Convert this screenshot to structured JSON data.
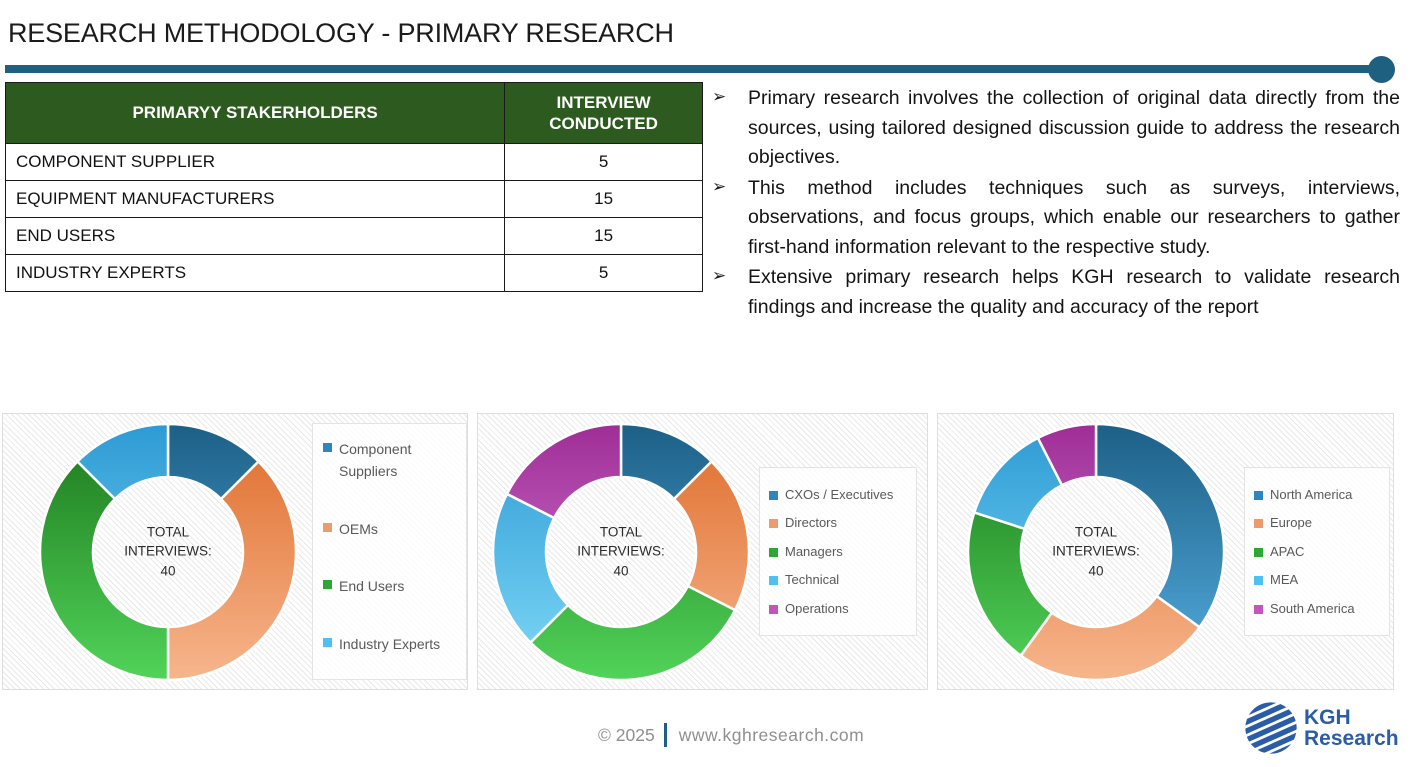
{
  "page": {
    "title": "RESEARCH METHODOLOGY - PRIMARY RESEARCH"
  },
  "theme": {
    "divider_color": "#1E6080",
    "table_header_bg": "#2D5A1E",
    "table_border": "#1a1a1a",
    "legend_text": "#595959",
    "logo_blue": "#2B5CA8"
  },
  "table": {
    "headers": [
      "PRIMARYY STAKERHOLDERS",
      "INTERVIEW CONDUCTED"
    ],
    "rows": [
      {
        "stakeholder": "COMPONENT SUPPLIER",
        "interviews": "5"
      },
      {
        "stakeholder": "EQUIPMENT MANUFACTURERS",
        "interviews": "15"
      },
      {
        "stakeholder": "END USERS",
        "interviews": "15"
      },
      {
        "stakeholder": "INDUSTRY EXPERTS",
        "interviews": "5"
      }
    ]
  },
  "bullets": {
    "marker": "➢",
    "items": [
      "Primary research involves the collection of original data directly from the sources, using tailored designed discussion guide to address the research objectives.",
      "This method includes techniques such as surveys, interviews, observations, and focus groups, which enable our researchers to gather first-hand information relevant to the respective study.",
      "Extensive primary research helps KGH research to validate research findings and increase the quality and accuracy of the report"
    ]
  },
  "chart_data": [
    {
      "type": "pie",
      "subtype": "donut",
      "title": "Interviews by stakeholder",
      "center_label": "TOTAL INTERVIEWS:",
      "center_value": "40",
      "total": 40,
      "legend_position": "right",
      "series": [
        {
          "label": "Component Suppliers",
          "value": 5,
          "marker": "#2E86C1",
          "grad_top": "#1C5F86",
          "grad_bottom": "#55AEE0"
        },
        {
          "label": "OEMs",
          "value": 15,
          "marker": "#EC9B6F",
          "grad_top": "#DE6C2B",
          "grad_bottom": "#F7B68D"
        },
        {
          "label": "End Users",
          "value": 15,
          "marker": "#2FA833",
          "grad_top": "#1B761B",
          "grad_bottom": "#52D45A"
        },
        {
          "label": "Industry Experts",
          "value": 5,
          "marker": "#4FC1F0",
          "grad_top": "#2D9AD4",
          "grad_bottom": "#7FD9F7"
        }
      ]
    },
    {
      "type": "pie",
      "subtype": "donut",
      "title": "Interviews by designation",
      "center_label": "TOTAL INTERVIEWS:",
      "center_value": "40",
      "total": 40,
      "legend_position": "right",
      "series": [
        {
          "label": "CXOs / Executives",
          "value": 5,
          "marker": "#2E86C1",
          "grad_top": "#1C5F86",
          "grad_bottom": "#55AEE0"
        },
        {
          "label": "Directors",
          "value": 8,
          "marker": "#EC9B6F",
          "grad_top": "#DE6C2B",
          "grad_bottom": "#F7B68D"
        },
        {
          "label": "Managers",
          "value": 12,
          "marker": "#2FA833",
          "grad_top": "#1B761B",
          "grad_bottom": "#52D45A"
        },
        {
          "label": "Technical",
          "value": 8,
          "marker": "#4FC1F0",
          "grad_top": "#2D9AD4",
          "grad_bottom": "#7FD9F7"
        },
        {
          "label": "Operations",
          "value": 7,
          "marker": "#C455BE",
          "grad_top": "#9E2D96",
          "grad_bottom": "#DC85DA"
        }
      ]
    },
    {
      "type": "pie",
      "subtype": "donut",
      "title": "Interviews by region",
      "center_label": "TOTAL INTERVIEWS:",
      "center_value": "40",
      "total": 40,
      "legend_position": "right",
      "series": [
        {
          "label": "North America",
          "value": 14,
          "marker": "#2E86C1",
          "grad_top": "#1C5F86",
          "grad_bottom": "#55AEE0"
        },
        {
          "label": "Europe",
          "value": 10,
          "marker": "#EC9B6F",
          "grad_top": "#DE6C2B",
          "grad_bottom": "#F7B68D"
        },
        {
          "label": "APAC",
          "value": 8,
          "marker": "#2FA833",
          "grad_top": "#1B761B",
          "grad_bottom": "#52D45A"
        },
        {
          "label": "MEA",
          "value": 5,
          "marker": "#4FC1F0",
          "grad_top": "#2D9AD4",
          "grad_bottom": "#7FD9F7"
        },
        {
          "label": "South America",
          "value": 3,
          "marker": "#C455BE",
          "grad_top": "#9E2D96",
          "grad_bottom": "#DC85DA"
        }
      ]
    }
  ],
  "footer": {
    "copyright": "© 2025",
    "separator": "|",
    "website": "www.kghresearch.com"
  },
  "logo": {
    "line1": "KGH",
    "line2": "Research"
  }
}
